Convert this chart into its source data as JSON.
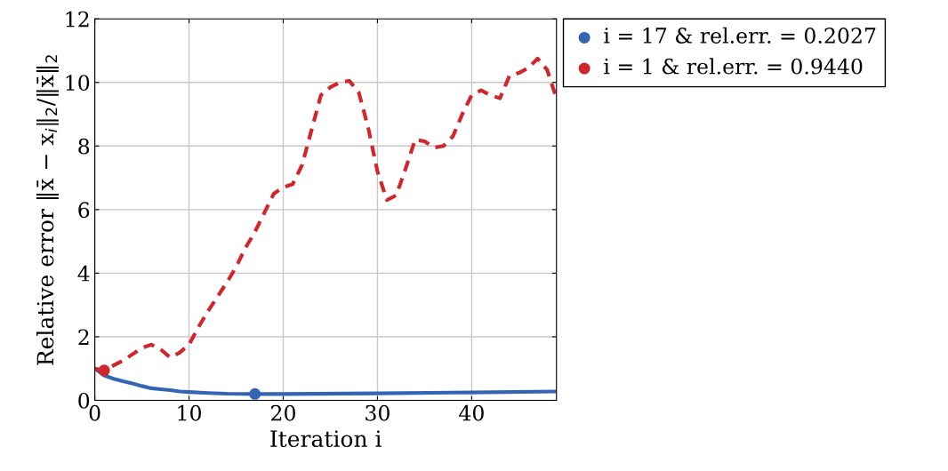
{
  "chart_data": {
    "type": "line",
    "xlabel": "Iteration i",
    "ylabel": "Relative error ‖x̄ − x$_{i}$‖$_{2}$/‖x̄‖$_{2}$",
    "xlim": [
      0,
      49
    ],
    "ylim": [
      0,
      12
    ],
    "xticks": [
      0,
      10,
      20,
      30,
      40
    ],
    "yticks": [
      0,
      2,
      4,
      6,
      8,
      10,
      12
    ],
    "grid": true,
    "legend": "top right",
    "series": [
      {
        "line_style": "solid",
        "color": "#3465b4",
        "x": [
          0,
          1,
          2,
          3,
          4,
          5,
          6,
          7,
          8,
          9,
          10,
          12,
          14,
          17,
          20,
          30,
          40,
          49
        ],
        "values": [
          1.0,
          0.78,
          0.68,
          0.6,
          0.53,
          0.45,
          0.38,
          0.35,
          0.32,
          0.28,
          0.26,
          0.23,
          0.21,
          0.2,
          0.2,
          0.22,
          0.25,
          0.28
        ]
      },
      {
        "line_style": "dashed",
        "color": "#d0262c",
        "x": [
          0,
          1,
          2,
          3,
          4,
          5,
          6,
          7,
          8,
          9,
          10,
          11,
          12,
          13,
          14,
          15,
          16,
          17,
          18,
          19,
          20,
          21,
          22,
          23,
          24,
          25,
          26,
          27,
          28,
          29,
          30,
          31,
          32,
          33,
          34,
          35,
          36,
          37,
          38,
          39,
          40,
          41,
          42,
          43,
          44,
          45,
          46,
          47,
          48,
          49
        ],
        "values": [
          1.0,
          0.94,
          1.1,
          1.25,
          1.45,
          1.65,
          1.75,
          1.6,
          1.35,
          1.5,
          1.75,
          2.3,
          2.8,
          3.25,
          3.7,
          4.2,
          4.8,
          5.3,
          5.9,
          6.5,
          6.7,
          6.8,
          7.4,
          8.5,
          9.6,
          9.85,
          10.0,
          10.05,
          9.7,
          8.6,
          7.2,
          6.3,
          6.45,
          7.3,
          8.2,
          8.15,
          7.95,
          8.0,
          8.3,
          9.0,
          9.6,
          9.75,
          9.6,
          9.5,
          10.2,
          10.3,
          10.45,
          10.75,
          10.4,
          9.5
        ]
      },
      {
        "type": "scatter",
        "marker": "circle",
        "name": "i = 17 & rel.err. = 0.2027",
        "color": "#3465b4",
        "x": [
          17
        ],
        "values": [
          0.2
        ]
      },
      {
        "type": "scatter",
        "marker": "circle",
        "name": "i = 1 & rel.err. = 0.9440",
        "color": "#d0262c",
        "x": [
          1
        ],
        "values": [
          0.94
        ]
      }
    ]
  }
}
